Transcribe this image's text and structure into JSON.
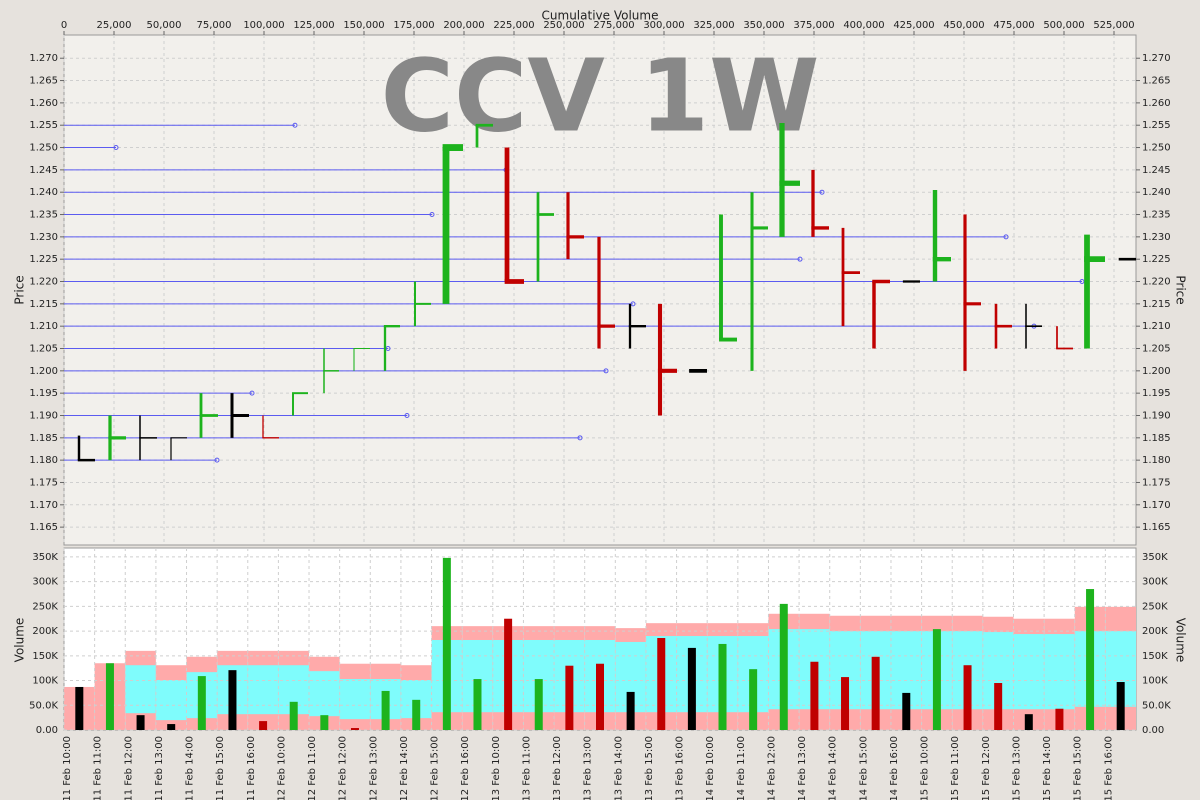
{
  "chart_data": [
    {
      "type": "equivolume",
      "title": "CCV 1W",
      "xlabel": "Cumulative Volume",
      "ylabel": "Price",
      "xlim": [
        0,
        536000
      ],
      "xticks": [
        0,
        {
          "value": 25000,
          "label": "25,000"
        },
        {
          "value": 50000,
          "label": "50,000"
        },
        {
          "value": 75000,
          "label": "75,000"
        },
        {
          "value": 100000,
          "label": "100,000"
        },
        {
          "value": 125000,
          "label": "125,000"
        },
        {
          "value": 150000,
          "label": "150,000"
        },
        {
          "value": 175000,
          "label": "175,000"
        },
        {
          "value": 200000,
          "label": "200,000"
        },
        {
          "value": 225000,
          "label": "225,000"
        },
        {
          "value": 250000,
          "label": "250,000"
        },
        {
          "value": 275000,
          "label": "275,000"
        },
        {
          "value": 300000,
          "label": "300,000"
        },
        {
          "value": 325000,
          "label": "325,000"
        },
        {
          "value": 350000,
          "label": "350,000"
        },
        {
          "value": 375000,
          "label": "375,000"
        },
        {
          "value": 400000,
          "label": "400,000"
        },
        {
          "value": 425000,
          "label": "425,000"
        },
        {
          "value": 450000,
          "label": "450,000"
        },
        {
          "value": 475000,
          "label": "475,000"
        },
        {
          "value": 500000,
          "label": "500,000"
        },
        {
          "value": 525000,
          "label": "525,000"
        }
      ],
      "ylim": [
        1.161,
        1.2752
      ],
      "yticks": [
        {
          "value": 1.165,
          "label": "1.165"
        },
        {
          "value": 1.17,
          "label": "1.170"
        },
        {
          "value": 1.175,
          "label": "1.175"
        },
        {
          "value": 1.18,
          "label": "1.180"
        },
        {
          "value": 1.185,
          "label": "1.185"
        },
        {
          "value": 1.19,
          "label": "1.190"
        },
        {
          "value": 1.195,
          "label": "1.195"
        },
        {
          "value": 1.2,
          "label": "1.200"
        },
        {
          "value": 1.205,
          "label": "1.205"
        },
        {
          "value": 1.21,
          "label": "1.210"
        },
        {
          "value": 1.215,
          "label": "1.215"
        },
        {
          "value": 1.22,
          "label": "1.220"
        },
        {
          "value": 1.225,
          "label": "1.225"
        },
        {
          "value": 1.23,
          "label": "1.230"
        },
        {
          "value": 1.235,
          "label": "1.235"
        },
        {
          "value": 1.24,
          "label": "1.240"
        },
        {
          "value": 1.245,
          "label": "1.245"
        },
        {
          "value": 1.25,
          "label": "1.250"
        },
        {
          "value": 1.255,
          "label": "1.255"
        },
        {
          "value": 1.26,
          "label": "1.260"
        },
        {
          "value": 1.265,
          "label": "1.265"
        },
        {
          "value": 1.27,
          "label": "1.270"
        }
      ],
      "grid": true,
      "candles": {
        "x": [
          7500,
          23000,
          38000,
          53500,
          68500,
          84000,
          99500,
          114500,
          130000,
          145000,
          160500,
          175500,
          191000,
          206500,
          221500,
          237000,
          252000,
          267500,
          283000,
          298000,
          313500,
          328500,
          344000,
          359000,
          374500,
          389500,
          405000,
          420000,
          435500,
          450500,
          466000,
          481000,
          496500,
          511500,
          528000
        ],
        "x_end": [
          15500,
          31000,
          46500,
          61500,
          77000,
          92500,
          107500,
          122000,
          137500,
          153000,
          168000,
          183500,
          199500,
          214500,
          230000,
          245000,
          260000,
          275500,
          291000,
          306500,
          321500,
          336500,
          352000,
          368000,
          382500,
          398000,
          413000,
          428000,
          443500,
          458500,
          474000,
          489000,
          504500,
          520500,
          536000
        ],
        "high": [
          1.1855,
          1.19,
          1.19,
          1.185,
          1.195,
          1.195,
          1.19,
          1.195,
          1.205,
          1.205,
          1.21,
          1.22,
          1.25,
          1.255,
          1.25,
          1.24,
          1.24,
          1.23,
          1.215,
          1.215,
          1.2,
          1.235,
          1.24,
          1.2555,
          1.245,
          1.232,
          1.22,
          1.22,
          1.2405,
          1.235,
          1.215,
          1.215,
          1.21,
          1.2305,
          1.225
        ],
        "low": [
          1.18,
          1.18,
          1.18,
          1.18,
          1.185,
          1.185,
          1.185,
          1.19,
          1.195,
          1.2,
          1.2,
          1.21,
          1.215,
          1.25,
          1.22,
          1.22,
          1.225,
          1.205,
          1.205,
          1.19,
          1.2,
          1.207,
          1.2,
          1.23,
          1.23,
          1.21,
          1.205,
          1.22,
          1.22,
          1.2,
          1.205,
          1.205,
          1.205,
          1.205,
          1.225
        ],
        "close": [
          1.18,
          1.185,
          1.185,
          1.185,
          1.19,
          1.19,
          1.185,
          1.195,
          1.2,
          1.205,
          1.21,
          1.215,
          1.25,
          1.255,
          1.22,
          1.235,
          1.23,
          1.21,
          1.21,
          1.2,
          1.2,
          1.207,
          1.232,
          1.242,
          1.232,
          1.222,
          1.22,
          1.22,
          1.225,
          1.215,
          1.21,
          1.21,
          1.205,
          1.225,
          1.225
        ],
        "color": [
          "#000000",
          "#1db31d",
          "#000000",
          "#000000",
          "#1db31d",
          "#000000",
          "#c00000",
          "#1db31d",
          "#1db31d",
          "#1db31d",
          "#1db31d",
          "#1db31d",
          "#1db31d",
          "#1db31d",
          "#c00000",
          "#1db31d",
          "#c00000",
          "#c00000",
          "#000000",
          "#c00000",
          "#000000",
          "#1db31d",
          "#1db31d",
          "#1db31d",
          "#c00000",
          "#c00000",
          "#c00000",
          "#000000",
          "#1db31d",
          "#c00000",
          "#c00000",
          "#000000",
          "#c00000",
          "#1db31d",
          "#000000"
        ]
      },
      "levels": {
        "price": [
          1.255,
          1.25,
          1.245,
          1.24,
          1.235,
          1.23,
          1.225,
          1.22,
          1.215,
          1.21,
          1.205,
          1.2,
          1.195,
          1.19,
          1.185,
          1.18
        ],
        "end": [
          115500,
          26000,
          221000,
          379000,
          184000,
          471000,
          368000,
          509000,
          284500,
          485000,
          162000,
          271000,
          94000,
          171500,
          258000,
          76500
        ],
        "color": "#5b5bf0"
      }
    },
    {
      "type": "bar",
      "ylabel": "Volume",
      "categories": [
        "11 Feb 10:00",
        "11 Feb 11:00",
        "11 Feb 12:00",
        "11 Feb 13:00",
        "11 Feb 14:00",
        "11 Feb 15:00",
        "11 Feb 16:00",
        "12 Feb 10:00",
        "12 Feb 11:00",
        "12 Feb 12:00",
        "12 Feb 13:00",
        "12 Feb 14:00",
        "12 Feb 15:00",
        "12 Feb 16:00",
        "13 Feb 10:00",
        "13 Feb 11:00",
        "13 Feb 12:00",
        "13 Feb 13:00",
        "13 Feb 14:00",
        "13 Feb 15:00",
        "13 Feb 16:00",
        "14 Feb 10:00",
        "14 Feb 11:00",
        "14 Feb 12:00",
        "14 Feb 13:00",
        "14 Feb 14:00",
        "14 Feb 15:00",
        "14 Feb 16:00",
        "15 Feb 10:00",
        "15 Feb 11:00",
        "15 Feb 12:00",
        "15 Feb 13:00",
        "15 Feb 14:00",
        "15 Feb 15:00",
        "15 Feb 16:00"
      ],
      "values": [
        87000,
        135000,
        30000,
        12000,
        109000,
        121000,
        18000,
        57000,
        30000,
        4000,
        79000,
        61000,
        348000,
        103000,
        225000,
        103000,
        130000,
        134000,
        77000,
        186000,
        166000,
        174000,
        123000,
        255000,
        138000,
        107000,
        148000,
        75000,
        204000,
        131000,
        95000,
        32000,
        43000,
        285000,
        97000
      ],
      "colors": [
        "#000000",
        "#1db31d",
        "#000000",
        "#000000",
        "#1db31d",
        "#000000",
        "#c00000",
        "#1db31d",
        "#1db31d",
        "#c00000",
        "#1db31d",
        "#1db31d",
        "#1db31d",
        "#1db31d",
        "#c00000",
        "#1db31d",
        "#c00000",
        "#c00000",
        "#000000",
        "#c00000",
        "#000000",
        "#1db31d",
        "#1db31d",
        "#1db31d",
        "#c00000",
        "#c00000",
        "#c00000",
        "#000000",
        "#1db31d",
        "#c00000",
        "#c00000",
        "#000000",
        "#c00000",
        "#1db31d",
        "#000000"
      ],
      "bands": {
        "top": [
          87000,
          135000,
          160000,
          131000,
          148000,
          160000,
          160000,
          160000,
          148000,
          134000,
          134000,
          131000,
          210000,
          210000,
          210000,
          210000,
          210000,
          210000,
          206000,
          216000,
          216000,
          216000,
          216000,
          235000,
          235000,
          231000,
          231000,
          231000,
          231000,
          231000,
          229000,
          225000,
          225000,
          249000,
          249000
        ],
        "cyan_low": [
          null,
          null,
          34000,
          20000,
          24000,
          32000,
          32000,
          32000,
          28000,
          22000,
          22000,
          24000,
          36000,
          36000,
          36000,
          36000,
          36000,
          36000,
          36000,
          36000,
          36000,
          36000,
          36000,
          42000,
          42000,
          42000,
          42000,
          42000,
          42000,
          42000,
          42000,
          42000,
          42000,
          47000,
          47000
        ],
        "cyan_high": [
          null,
          null,
          131000,
          101000,
          117000,
          131000,
          131000,
          131000,
          119000,
          103000,
          103000,
          101000,
          182000,
          182000,
          182000,
          182000,
          182000,
          182000,
          178000,
          190000,
          190000,
          190000,
          190000,
          204000,
          204000,
          200000,
          200000,
          200000,
          200000,
          200000,
          198000,
          194000,
          194000,
          200000,
          200000
        ],
        "colors": [
          "#ffaaaa",
          "#7ffcfc"
        ]
      },
      "ylim": [
        0,
        368000
      ],
      "yticks": [
        {
          "value": 0,
          "label": "0.00"
        },
        {
          "value": 50000,
          "label": "50.0K"
        },
        {
          "value": 100000,
          "label": "100K"
        },
        {
          "value": 150000,
          "label": "150K"
        },
        {
          "value": 200000,
          "label": "200K"
        },
        {
          "value": 250000,
          "label": "250K"
        },
        {
          "value": 300000,
          "label": "300K"
        },
        {
          "value": 350000,
          "label": "350K"
        }
      ],
      "grid": true
    }
  ]
}
